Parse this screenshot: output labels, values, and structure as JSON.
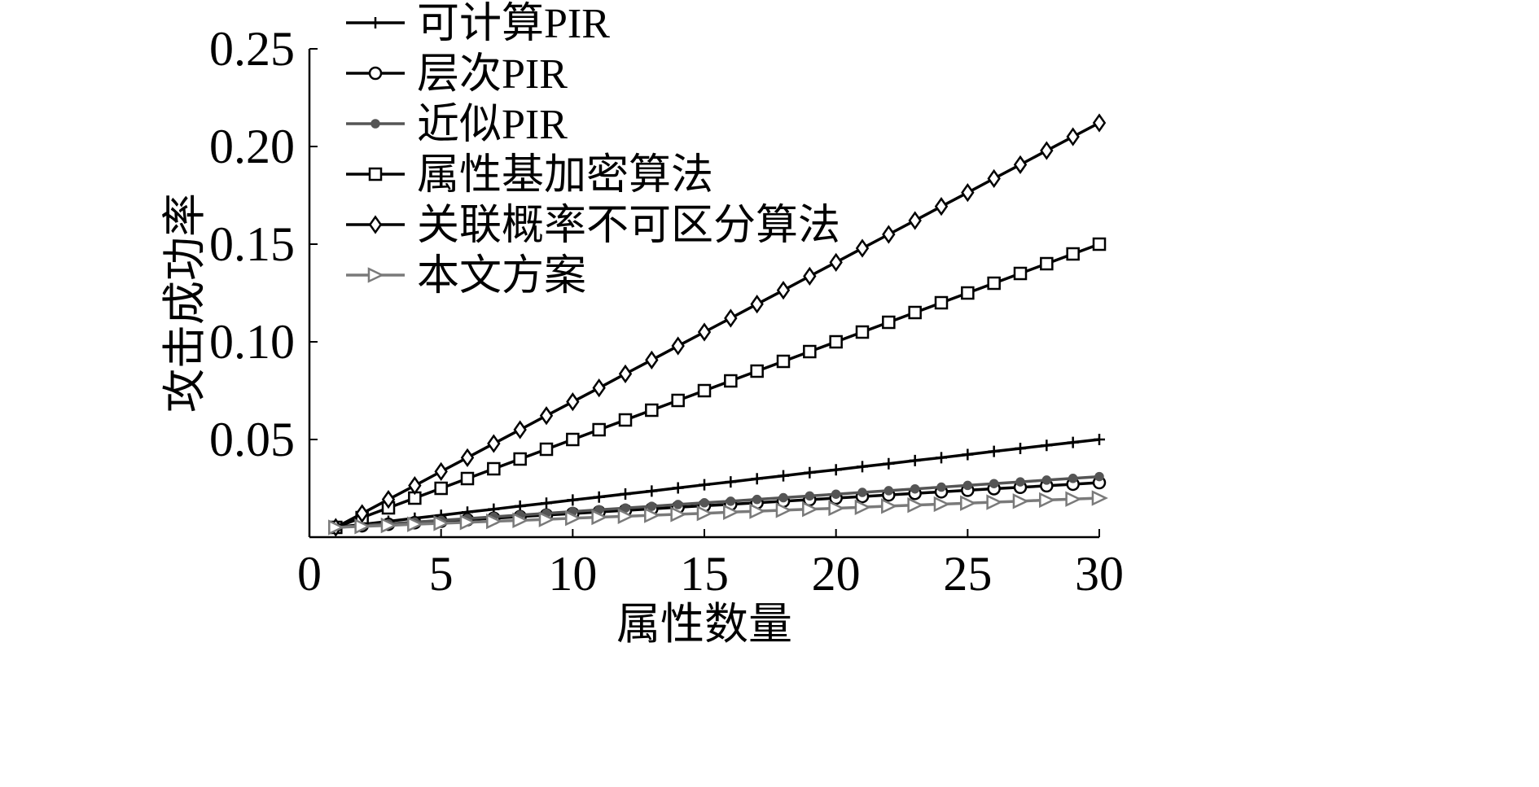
{
  "chart_data": {
    "type": "line",
    "title": "",
    "xlabel": "属性数量",
    "ylabel": "攻击成功率",
    "xlim": [
      0,
      30
    ],
    "ylim": [
      0,
      0.25
    ],
    "xticks": [
      0,
      5,
      10,
      15,
      20,
      25,
      30
    ],
    "xtick_labels": [
      "0",
      "5",
      "10",
      "15",
      "20",
      "25",
      "30"
    ],
    "yticks": [
      0.05,
      0.1,
      0.15,
      0.2,
      0.25
    ],
    "ytick_labels": [
      "0.05",
      "0.10",
      "0.15",
      "0.20",
      "0.25"
    ],
    "grid": false,
    "legend_position": "top-left",
    "x": [
      1,
      2,
      3,
      4,
      5,
      6,
      7,
      8,
      9,
      10,
      11,
      12,
      13,
      14,
      15,
      16,
      17,
      18,
      19,
      20,
      21,
      22,
      23,
      24,
      25,
      26,
      27,
      28,
      29,
      30
    ],
    "series": [
      {
        "name": "可计算PIR",
        "marker": "plus",
        "color": "#000000",
        "values": [
          0.005,
          0.0065,
          0.0081,
          0.0097,
          0.0112,
          0.0128,
          0.0143,
          0.0159,
          0.0174,
          0.019,
          0.0205,
          0.0221,
          0.0236,
          0.0252,
          0.0268,
          0.0283,
          0.0299,
          0.0314,
          0.033,
          0.0345,
          0.0361,
          0.0376,
          0.0392,
          0.0407,
          0.0423,
          0.0439,
          0.0454,
          0.047,
          0.0485,
          0.05
        ]
      },
      {
        "name": "层次PIR",
        "marker": "circle",
        "color": "#000000",
        "values": [
          0.005,
          0.0058,
          0.0066,
          0.0074,
          0.0081,
          0.0089,
          0.0097,
          0.0105,
          0.0113,
          0.0121,
          0.0129,
          0.0137,
          0.0145,
          0.0153,
          0.0161,
          0.0168,
          0.0176,
          0.0184,
          0.0192,
          0.02,
          0.0208,
          0.0216,
          0.0224,
          0.0232,
          0.024,
          0.0248,
          0.0255,
          0.0263,
          0.0271,
          0.0279
        ]
      },
      {
        "name": "近似PIR",
        "marker": "dot",
        "color": "#555555",
        "values": [
          0.005,
          0.0059,
          0.0068,
          0.0077,
          0.0086,
          0.0095,
          0.0104,
          0.0113,
          0.0122,
          0.0131,
          0.014,
          0.0149,
          0.0158,
          0.0167,
          0.0176,
          0.0184,
          0.0193,
          0.0202,
          0.0211,
          0.022,
          0.0229,
          0.0238,
          0.0247,
          0.0256,
          0.0265,
          0.0274,
          0.0283,
          0.0292,
          0.0301,
          0.031
        ]
      },
      {
        "name": "属性基加密算法",
        "marker": "square",
        "color": "#000000",
        "values": [
          0.005,
          0.01,
          0.015,
          0.02,
          0.025,
          0.03,
          0.035,
          0.04,
          0.045,
          0.05,
          0.055,
          0.06,
          0.065,
          0.07,
          0.075,
          0.08,
          0.085,
          0.09,
          0.095,
          0.1,
          0.105,
          0.11,
          0.115,
          0.12,
          0.125,
          0.13,
          0.135,
          0.14,
          0.145,
          0.15
        ]
      },
      {
        "name": "关联概率不可区分算法",
        "marker": "diamond",
        "color": "#000000",
        "values": [
          0.005,
          0.0121,
          0.0193,
          0.0264,
          0.0336,
          0.0407,
          0.0479,
          0.055,
          0.0622,
          0.0693,
          0.0764,
          0.0836,
          0.0907,
          0.0979,
          0.105,
          0.1121,
          0.1193,
          0.1264,
          0.1336,
          0.1407,
          0.1479,
          0.155,
          0.1621,
          0.1693,
          0.1764,
          0.1836,
          0.1907,
          0.1979,
          0.205,
          0.2121
        ]
      },
      {
        "name": "本文方案",
        "marker": "triangle-right",
        "color": "#7a7a7a",
        "values": [
          0.005,
          0.0055,
          0.006,
          0.0066,
          0.0071,
          0.0076,
          0.0081,
          0.0086,
          0.0091,
          0.0097,
          0.0102,
          0.0107,
          0.0112,
          0.0117,
          0.0122,
          0.0128,
          0.0133,
          0.0138,
          0.0143,
          0.0148,
          0.0153,
          0.0159,
          0.0164,
          0.0169,
          0.0174,
          0.0179,
          0.0184,
          0.019,
          0.0195,
          0.02
        ]
      }
    ]
  }
}
